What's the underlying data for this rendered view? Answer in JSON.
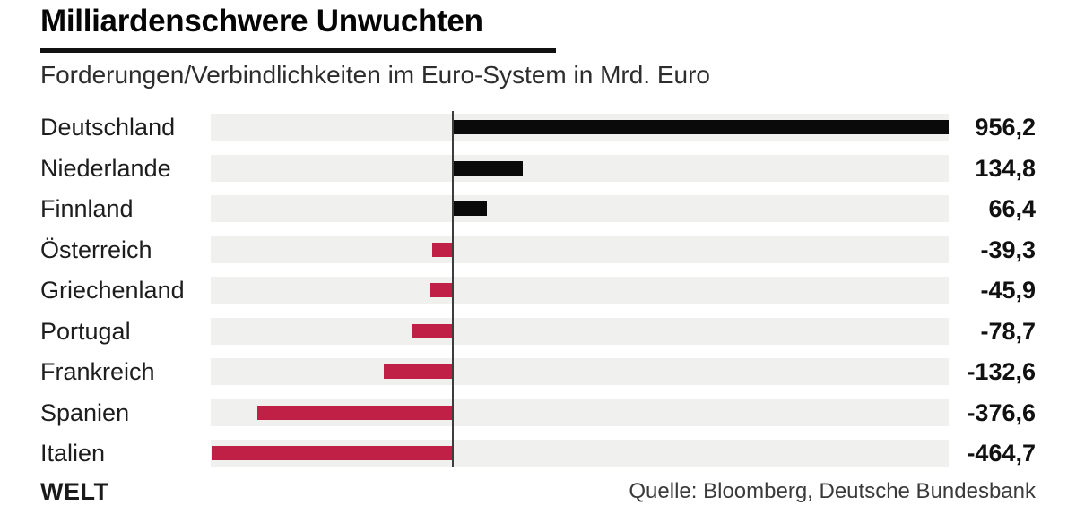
{
  "header": {
    "title": "Milliardenschwere Unwuchten",
    "subtitle": "Forderungen/Verbindlichkeiten im Euro-System in Mrd. Euro"
  },
  "footer": {
    "brand": "WELT",
    "source": "Quelle: Bloomberg, Deutsche Bundesbank"
  },
  "colors": {
    "positive_bar": "#0a0a0a",
    "negative_bar": "#c01f46",
    "row_background": "#f0f0ef",
    "zero_line": "#3d3d3d",
    "title_underline": "#111111"
  },
  "chart_data": {
    "type": "bar",
    "orientation": "horizontal",
    "title": "Milliardenschwere Unwuchten",
    "subtitle": "Forderungen/Verbindlichkeiten im Euro-System in Mrd. Euro",
    "unit": "Mrd. Euro",
    "categories": [
      "Deutschland",
      "Niederlande",
      "Finnland",
      "Österreich",
      "Griechenland",
      "Portugal",
      "Frankreich",
      "Spanien",
      "Italien"
    ],
    "values": [
      956.2,
      134.8,
      66.4,
      -39.3,
      -45.9,
      -78.7,
      -132.6,
      -376.6,
      -464.7
    ],
    "value_labels": [
      "956,2",
      "134,8",
      "66,4",
      "-39,3",
      "-45,9",
      "-78,7",
      "-132,6",
      "-376,6",
      "-464,7"
    ],
    "xlim": [
      -467,
      956.2
    ],
    "grid": false,
    "legend": false
  }
}
